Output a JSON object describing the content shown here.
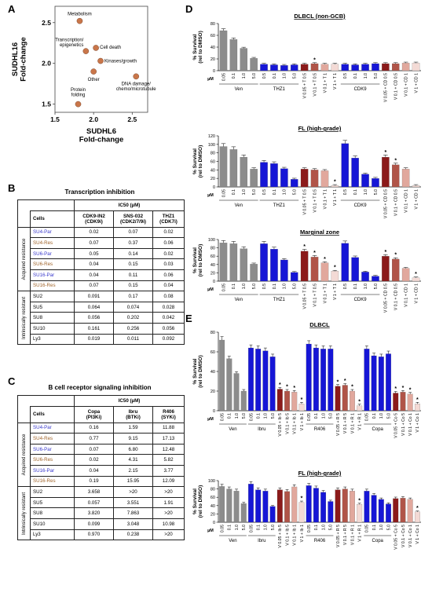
{
  "panels": {
    "a": "A",
    "b": "B",
    "c": "C",
    "d": "D",
    "e": "E"
  },
  "scatter": {
    "type": "scatter",
    "xlabel": "SUDHL6\nFold-change",
    "ylabel": "SUDHL16\nFold-change",
    "xlim": [
      1.5,
      2.7
    ],
    "ylim": [
      1.4,
      2.7
    ],
    "xticks": [
      "1.5",
      "2.0",
      "2.5"
    ],
    "yticks": [
      "1.5",
      "2.0",
      "2.5"
    ],
    "points": [
      {
        "label": "Metabolism",
        "x": 1.82,
        "y": 2.52
      },
      {
        "label": "Transcription/\nepigenetics",
        "x": 1.9,
        "y": 2.15
      },
      {
        "label": "Cell death",
        "x": 2.03,
        "y": 2.19
      },
      {
        "label": "Kinases/growth",
        "x": 2.09,
        "y": 2.03
      },
      {
        "label": "Other",
        "x": 2.0,
        "y": 1.9
      },
      {
        "label": "DNA damage/\nchemo/microtubule",
        "x": 2.55,
        "y": 1.84
      },
      {
        "label": "Protein\nfolding",
        "x": 1.8,
        "y": 1.5
      }
    ],
    "point_color": "#c9764a"
  },
  "table_b": {
    "title": "Transcription inhibition",
    "ic50": "IC50 (µM)",
    "cells_header": "Cells",
    "groups": [
      "Acquired resistance",
      "Intrinsically resistant"
    ],
    "columns": [
      "CDK9-IN2\n(CDK9i)",
      "SNS-032\n(CDK2/7/9i)",
      "THZ1\n(CDK7i)"
    ],
    "rows": [
      {
        "cell": "SU4-Par",
        "vals": [
          "0.02",
          "0.07",
          "0.02"
        ]
      },
      {
        "cell": "SU4-Res",
        "vals": [
          "0.07",
          "0.37",
          "0.06"
        ]
      },
      {
        "cell": "SU6-Par",
        "vals": [
          "0.05",
          "0.14",
          "0.02"
        ]
      },
      {
        "cell": "SU6-Res",
        "vals": [
          "0.04",
          "0.15",
          "0.03"
        ]
      },
      {
        "cell": "SU16-Par",
        "vals": [
          "0.04",
          "0.11",
          "0.06"
        ]
      },
      {
        "cell": "SU16-Res",
        "vals": [
          "0.07",
          "0.15",
          "0.04"
        ]
      },
      {
        "cell": "SU2",
        "vals": [
          "0.091",
          "0.17",
          "0.08"
        ]
      },
      {
        "cell": "SU5",
        "vals": [
          "0.064",
          "0.074",
          "0.028"
        ]
      },
      {
        "cell": "SU8",
        "vals": [
          "0.056",
          "0.202",
          "0.042"
        ]
      },
      {
        "cell": "SU10",
        "vals": [
          "0.161",
          "0.256",
          "0.056"
        ]
      },
      {
        "cell": "Ly3",
        "vals": [
          "0.019",
          "0.011",
          "0.092"
        ]
      }
    ]
  },
  "table_c": {
    "title": "B cell receptor signaling inhibition",
    "ic50": "IC50 (µM)",
    "cells_header": "Cells",
    "groups": [
      "Acquired resistance",
      "Intrinsically resistant"
    ],
    "columns": [
      "Copa\n(PI3Ki)",
      "Ibru\n(BTKi)",
      "R406\n(SYKi)"
    ],
    "rows": [
      {
        "cell": "SU4-Par",
        "vals": [
          "0.16",
          "1.59",
          "11.88"
        ]
      },
      {
        "cell": "SU4-Res",
        "vals": [
          "0.77",
          "9.15",
          "17.13"
        ]
      },
      {
        "cell": "SU6-Par",
        "vals": [
          "0.07",
          "6.80",
          "12.48"
        ]
      },
      {
        "cell": "SU6-Res",
        "vals": [
          "0.02",
          "4.31",
          "5.82"
        ]
      },
      {
        "cell": "SU16-Par",
        "vals": [
          "0.04",
          "2.15",
          "3.77"
        ]
      },
      {
        "cell": "SU16-Res",
        "vals": [
          "0.19",
          "15.95",
          "12.09"
        ]
      },
      {
        "cell": "SU2",
        "vals": [
          "3.658",
          ">20",
          ">20"
        ]
      },
      {
        "cell": "SU5",
        "vals": [
          "0.057",
          "3.551",
          "1.91"
        ]
      },
      {
        "cell": "SU8",
        "vals": [
          "3.820",
          "7.863",
          ">20"
        ]
      },
      {
        "cell": "SU10",
        "vals": [
          "0.099",
          "3.048",
          "10.98"
        ]
      },
      {
        "cell": "Ly3",
        "vals": [
          "0.970",
          "0.238",
          ">20"
        ]
      }
    ]
  },
  "colors": {
    "par": "#3a3acc",
    "res": "#a0642a",
    "intr": "#000000"
  },
  "bar_charts": [
    {
      "type": "bar",
      "title": "DLBCL (non-GCB)",
      "ylabel": "% Survival\n(rel to DMSO)",
      "unit": "µM",
      "ylim": [
        0,
        80
      ],
      "yticks": [
        0,
        20,
        40,
        60,
        80
      ],
      "categories": [
        "0.05",
        "0.1",
        "1.0",
        "5.0",
        "0.5",
        "0.1",
        "1.0",
        "5.0",
        "V 0.05 + T 0.5",
        "V 0.1 + T 0.5",
        "V 0.1 + T 1",
        "V 1 + T 1",
        "0.5",
        "0.1",
        "1.0",
        "5.0",
        "V 0.05 + CD 0.5",
        "V 0.1 + CD 0.5",
        "V 0.1 + CD 1",
        "V 1 + CD 1"
      ],
      "values": [
        68,
        53,
        38,
        21,
        11,
        10,
        9,
        10,
        11,
        12,
        11,
        11,
        11,
        10,
        11,
        12,
        12,
        12,
        13,
        13
      ],
      "colors": [
        "#8c8c8c",
        "#8c8c8c",
        "#8c8c8c",
        "#8c8c8c",
        "#1616d6",
        "#1616d6",
        "#1616d6",
        "#1616d6",
        "#8b1a1a",
        "#b05448",
        "#e1a89d",
        "#f3dad5",
        "#1616d6",
        "#1616d6",
        "#1616d6",
        "#1616d6",
        "#8b1a1a",
        "#b05448",
        "#e1a89d",
        "#f3dad5"
      ],
      "stars": [
        9
      ],
      "groups": [
        {
          "label": "Ven",
          "from": 0,
          "to": 3
        },
        {
          "label": "THZ1",
          "from": 4,
          "to": 7
        },
        {
          "label": "CDK9",
          "from": 12,
          "to": 15
        }
      ]
    },
    {
      "type": "bar",
      "title": "FL (high-grade)",
      "ylabel": "% Survival\n(rel to DMSO)",
      "unit": "µM",
      "ylim": [
        0,
        120
      ],
      "yticks": [
        0,
        20,
        40,
        60,
        80,
        100,
        120
      ],
      "categories": [
        "0.05",
        "0.1",
        "1.0",
        "5.0",
        "0.5",
        "0.1",
        "1.0",
        "5.0",
        "V 0.05 + T 0.5",
        "V 0.1 + T 0.5",
        "V 0.1 + T 1",
        "V 1 + T 1",
        "0.5",
        "0.1",
        "1.0",
        "5.0",
        "V 0.05 + CD 0.5",
        "V 0.1 + CD 0.5",
        "V 0.1 + CD 1",
        "V 1 + CD 1"
      ],
      "values": [
        95,
        88,
        70,
        42,
        58,
        55,
        43,
        18,
        42,
        40,
        38,
        3,
        102,
        68,
        30,
        20,
        70,
        52,
        42,
        3
      ],
      "colors": [
        "#8c8c8c",
        "#8c8c8c",
        "#8c8c8c",
        "#8c8c8c",
        "#1616d6",
        "#1616d6",
        "#1616d6",
        "#1616d6",
        "#8b1a1a",
        "#b05448",
        "#e1a89d",
        "#f3dad5",
        "#1616d6",
        "#1616d6",
        "#1616d6",
        "#1616d6",
        "#8b1a1a",
        "#b05448",
        "#e1a89d",
        "#f3dad5"
      ],
      "stars": [
        11,
        16,
        17
      ],
      "groups": [
        {
          "label": "Ven",
          "from": 0,
          "to": 3
        },
        {
          "label": "THZ1",
          "from": 4,
          "to": 7
        },
        {
          "label": "CDK9",
          "from": 12,
          "to": 15
        }
      ]
    },
    {
      "type": "bar",
      "title": "Marginal zone",
      "ylabel": "% Survival\n(rel to DMSO)",
      "unit": "µM",
      "ylim": [
        0,
        100
      ],
      "yticks": [
        0,
        20,
        40,
        60,
        80,
        100
      ],
      "categories": [
        "0.05",
        "0.1",
        "1.0",
        "5.0",
        "0.5",
        "0.1",
        "1.0",
        "5.0",
        "V 0.05 + T 0.5",
        "V 0.1 + T 0.5",
        "V 0.1 + T 1",
        "V 1 + T 1",
        "0.5",
        "0.1",
        "1.0",
        "5.0",
        "V 0.05 + CD 0.5",
        "V 0.1 + CD 0.5",
        "V 0.1 + CD 1",
        "V 1 + CD 1"
      ],
      "values": [
        92,
        90,
        78,
        41,
        90,
        77,
        51,
        21,
        72,
        58,
        44,
        24,
        91,
        57,
        22,
        12,
        60,
        53,
        31,
        8
      ],
      "colors": [
        "#8c8c8c",
        "#8c8c8c",
        "#8c8c8c",
        "#8c8c8c",
        "#1616d6",
        "#1616d6",
        "#1616d6",
        "#1616d6",
        "#8b1a1a",
        "#b05448",
        "#e1a89d",
        "#f3dad5",
        "#1616d6",
        "#1616d6",
        "#1616d6",
        "#1616d6",
        "#8b1a1a",
        "#b05448",
        "#e1a89d",
        "#f3dad5"
      ],
      "stars": [
        8,
        9,
        10,
        11,
        16,
        17,
        19
      ],
      "groups": [
        {
          "label": "Ven",
          "from": 0,
          "to": 3
        },
        {
          "label": "THZ1",
          "from": 4,
          "to": 7
        },
        {
          "label": "CDK9",
          "from": 12,
          "to": 15
        }
      ]
    },
    {
      "type": "bar",
      "title": "DLBCL",
      "ylabel": "% Survival\n(rel to DMSO)",
      "unit": "µM",
      "ylim": [
        0,
        80
      ],
      "yticks": [
        0,
        20,
        40,
        60,
        80
      ],
      "categories": [
        "0.05",
        "0.1",
        "1.0",
        "5.0",
        "0.05",
        "0.1",
        "1.0",
        "5.0",
        "V 0.05 + Ib 5",
        "V 0.1 + Ib 5",
        "V 0.1 + Ib 1",
        "V 1 + Ib 1",
        "0.05",
        "0.1",
        "1.0",
        "5.0",
        "V 0.05 + R 5",
        "V 0.1 + R 5",
        "V 0.1 + R 1",
        "V 1 + R 1",
        "0.05",
        "0.1",
        "1.0",
        "5.0",
        "V 0.05 + Co 5",
        "V 0.1 + Co 5",
        "V 0.1 + Co 1",
        "V 1 + Co 1"
      ],
      "values": [
        72,
        53,
        38,
        20,
        64,
        63,
        61,
        55,
        22,
        20,
        19,
        7,
        68,
        64,
        63,
        63,
        25,
        26,
        20,
        5,
        63,
        56,
        55,
        58,
        18,
        19,
        17,
        7
      ],
      "colors": [
        "#8c8c8c",
        "#8c8c8c",
        "#8c8c8c",
        "#8c8c8c",
        "#1616d6",
        "#1616d6",
        "#1616d6",
        "#1616d6",
        "#8b1a1a",
        "#b05448",
        "#e1a89d",
        "#f3dad5",
        "#1616d6",
        "#1616d6",
        "#1616d6",
        "#1616d6",
        "#8b1a1a",
        "#b05448",
        "#e1a89d",
        "#f3dad5",
        "#1616d6",
        "#1616d6",
        "#1616d6",
        "#1616d6",
        "#8b1a1a",
        "#b05448",
        "#e1a89d",
        "#f3dad5"
      ],
      "stars": [
        8,
        9,
        10,
        11,
        16,
        17,
        18,
        19,
        24,
        25,
        26,
        27
      ],
      "groups": [
        {
          "label": "Ven",
          "from": 0,
          "to": 3
        },
        {
          "label": "Ibru",
          "from": 4,
          "to": 7
        },
        {
          "label": "R406",
          "from": 12,
          "to": 15
        },
        {
          "label": "Copa",
          "from": 20,
          "to": 23
        }
      ]
    },
    {
      "type": "bar",
      "title": "FL (high-grade)",
      "ylabel": "% Survival\n(rel to DMSO)",
      "unit": "µM",
      "ylim": [
        0,
        100
      ],
      "yticks": [
        0,
        20,
        40,
        60,
        80,
        100
      ],
      "categories": [
        "0.05",
        "0.1",
        "1.0",
        "5.0",
        "0.05",
        "0.1",
        "1.0",
        "5.0",
        "V 0.05 + Ib 5",
        "V 0.1 + Ib 5",
        "V 0.1 + Ib 1",
        "V 1 + Ib 1",
        "0.05",
        "0.1",
        "1.0",
        "5.0",
        "V 0.05 + R 5",
        "V 0.1 + R 5",
        "V 0.1 + R 1",
        "V 1 + R 1",
        "0.05",
        "0.1",
        "1.0",
        "5.0",
        "V 0.05 + Co 5",
        "V 0.1 + Co 5",
        "V 0.1 + Co 1",
        "V 1 + Co 1"
      ],
      "values": [
        86,
        80,
        75,
        45,
        92,
        78,
        75,
        38,
        78,
        74,
        85,
        48,
        88,
        82,
        72,
        50,
        78,
        80,
        75,
        43,
        75,
        65,
        55,
        44,
        57,
        58,
        55,
        25
      ],
      "colors": [
        "#8c8c8c",
        "#8c8c8c",
        "#8c8c8c",
        "#8c8c8c",
        "#1616d6",
        "#1616d6",
        "#1616d6",
        "#1616d6",
        "#8b1a1a",
        "#b05448",
        "#e1a89d",
        "#f3dad5",
        "#1616d6",
        "#1616d6",
        "#1616d6",
        "#1616d6",
        "#8b1a1a",
        "#b05448",
        "#e1a89d",
        "#f3dad5",
        "#1616d6",
        "#1616d6",
        "#1616d6",
        "#1616d6",
        "#8b1a1a",
        "#b05448",
        "#e1a89d",
        "#f3dad5"
      ],
      "stars": [
        11,
        19,
        27
      ],
      "groups": [
        {
          "label": "Ven",
          "from": 0,
          "to": 3
        },
        {
          "label": "Ibru",
          "from": 4,
          "to": 7
        },
        {
          "label": "R406",
          "from": 12,
          "to": 15
        },
        {
          "label": "Copa",
          "from": 20,
          "to": 23
        }
      ]
    }
  ]
}
